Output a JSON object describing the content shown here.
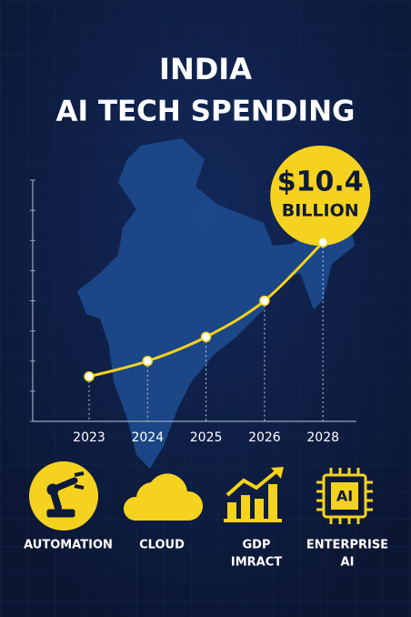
{
  "chart_data": {
    "type": "line",
    "title": "INDIA",
    "subtitle": "AI TECH SPENDING",
    "categories": [
      "2023",
      "2024",
      "2025",
      "2026",
      "2028"
    ],
    "values": [
      2.6,
      3.5,
      4.9,
      7.0,
      10.4
    ],
    "value_labels": [
      null,
      null,
      null,
      null,
      "$10.4"
    ],
    "value_unit": "BILLION",
    "color": "#f5d21f",
    "ylim": [
      0,
      14
    ],
    "yticks": [
      0,
      1.75,
      3.5,
      5.25,
      7,
      8.75,
      10.5,
      12.25,
      14
    ]
  },
  "features": [
    {
      "lines": [
        "AUTOMATION"
      ]
    },
    {
      "lines": [
        "CLOUD"
      ]
    },
    {
      "lines": [
        "GDP",
        "IMRACT"
      ]
    },
    {
      "lines": [
        "ENTERPRISE",
        "AI"
      ]
    }
  ],
  "chip_text": "AI"
}
